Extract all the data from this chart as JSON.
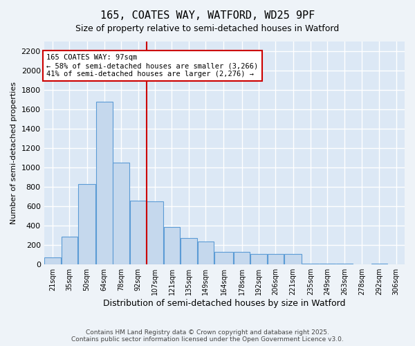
{
  "title_line1": "165, COATES WAY, WATFORD, WD25 9PF",
  "title_line2": "Size of property relative to semi-detached houses in Watford",
  "xlabel": "Distribution of semi-detached houses by size in Watford",
  "ylabel": "Number of semi-detached properties",
  "bar_color": "#c5d8ed",
  "bar_edge_color": "#5b9bd5",
  "background_color": "#dce8f5",
  "grid_color": "#ffffff",
  "annotation_box_color": "#cc0000",
  "vline_color": "#cc0000",
  "vline_x": 99,
  "annotation_text_line1": "165 COATES WAY: 97sqm",
  "annotation_text_line2": "← 58% of semi-detached houses are smaller (3,266)",
  "annotation_text_line3": "41% of semi-detached houses are larger (2,276) →",
  "footer_line1": "Contains HM Land Registry data © Crown copyright and database right 2025.",
  "footer_line2": "Contains public sector information licensed under the Open Government Licence v3.0.",
  "categories": [
    "21sqm",
    "35sqm",
    "50sqm",
    "64sqm",
    "78sqm",
    "92sqm",
    "107sqm",
    "121sqm",
    "135sqm",
    "149sqm",
    "164sqm",
    "178sqm",
    "192sqm",
    "206sqm",
    "221sqm",
    "235sqm",
    "249sqm",
    "263sqm",
    "278sqm",
    "292sqm",
    "306sqm"
  ],
  "bin_edges": [
    14,
    28,
    42,
    57,
    71,
    85,
    99,
    113,
    127,
    141,
    155,
    171,
    185,
    199,
    213,
    228,
    242,
    256,
    270,
    285,
    299,
    313
  ],
  "values": [
    70,
    290,
    830,
    1680,
    1050,
    660,
    650,
    390,
    270,
    240,
    130,
    130,
    110,
    110,
    110,
    10,
    10,
    10,
    0,
    10,
    0
  ],
  "ylim": [
    0,
    2300
  ],
  "yticks": [
    0,
    200,
    400,
    600,
    800,
    1000,
    1200,
    1400,
    1600,
    1800,
    2000,
    2200
  ]
}
